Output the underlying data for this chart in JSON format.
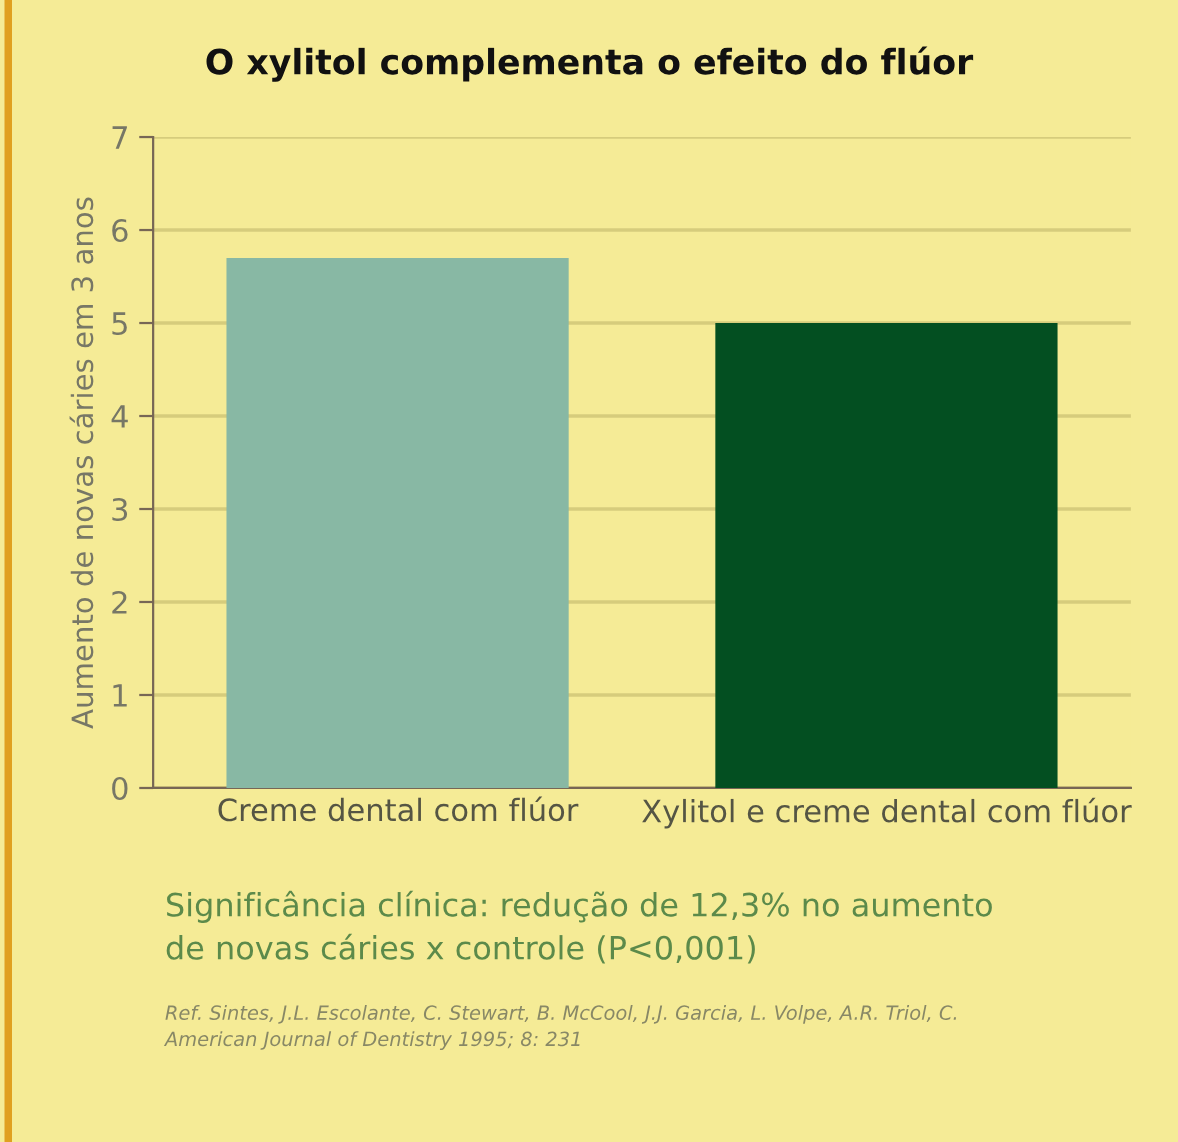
{
  "chart_data": {
    "type": "bar",
    "title": "O xylitol complementa o efeito do flúor",
    "ylabel": "Aumento de novas cáries em 3 anos",
    "categories": [
      "Creme dental com flúor",
      "Xylitol e creme dental com flúor"
    ],
    "values": [
      5.7,
      5.0
    ],
    "colors": [
      "#88b8a4",
      "#034f21"
    ],
    "ylim": [
      0,
      7
    ],
    "yticks": [
      0,
      1,
      2,
      3,
      4,
      5,
      6,
      7
    ],
    "grid": "y",
    "annotations": [
      "Significância clínica: redução de 12,3% no aumento\nde novas cáries x controle (P<0,001)",
      "Ref. Sintes, J.L. Escolante, C. Stewart, B. McCool, J.J. Garcia, L. Volpe, A.R. Triol, C.\nAmerican Journal of Dentistry 1995; 8: 231"
    ]
  }
}
